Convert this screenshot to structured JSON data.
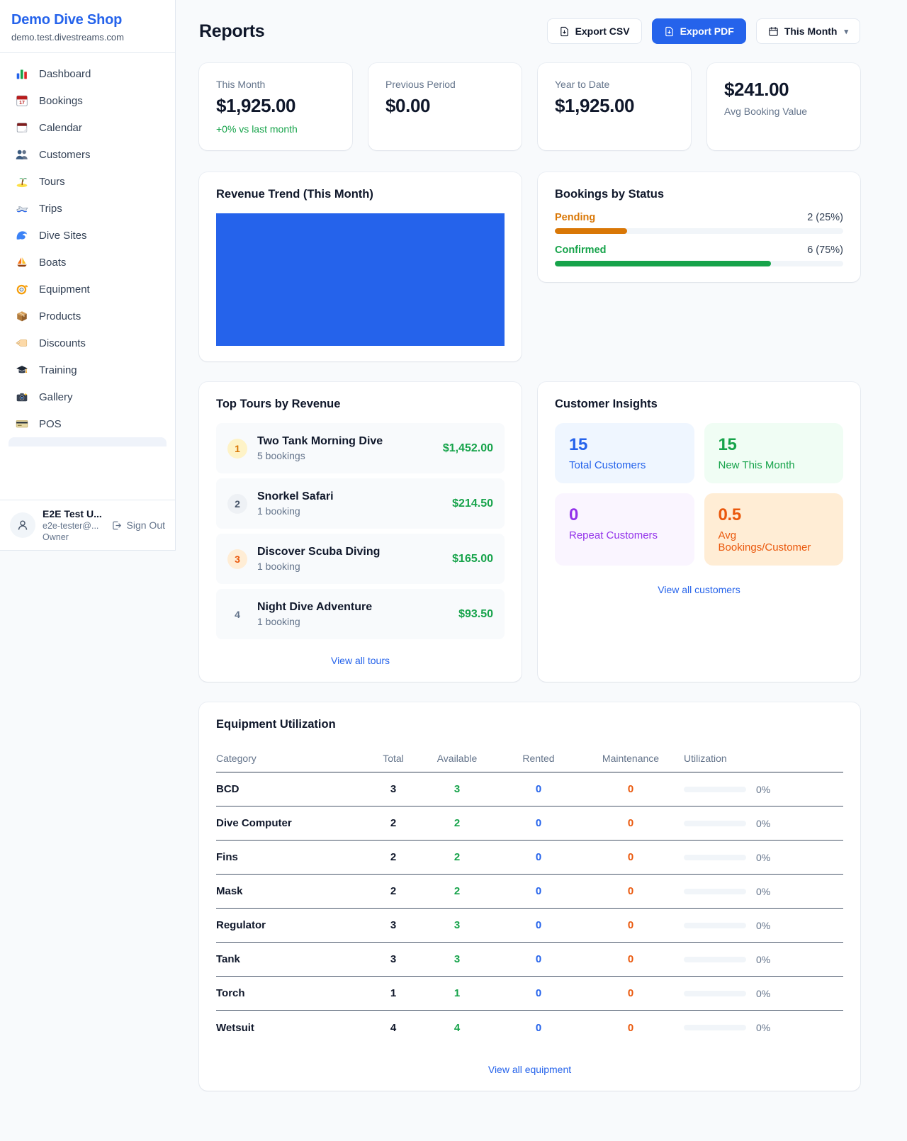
{
  "sidebar": {
    "title": "Demo Dive Shop",
    "subtitle": "demo.test.divestreams.com",
    "items": [
      {
        "label": "Dashboard",
        "icon": "bar-chart-icon"
      },
      {
        "label": "Bookings",
        "icon": "calendar-date-icon"
      },
      {
        "label": "Calendar",
        "icon": "tear-off-calendar-icon"
      },
      {
        "label": "Customers",
        "icon": "people-icon"
      },
      {
        "label": "Tours",
        "icon": "island-icon"
      },
      {
        "label": "Trips",
        "icon": "speedboat-icon"
      },
      {
        "label": "Dive Sites",
        "icon": "wave-icon"
      },
      {
        "label": "Boats",
        "icon": "sailboat-icon"
      },
      {
        "label": "Equipment",
        "icon": "dive-mask-icon"
      },
      {
        "label": "Products",
        "icon": "package-icon"
      },
      {
        "label": "Discounts",
        "icon": "tag-icon"
      },
      {
        "label": "Training",
        "icon": "graduation-cap-icon"
      },
      {
        "label": "Gallery",
        "icon": "camera-icon"
      },
      {
        "label": "POS",
        "icon": "credit-card-icon"
      }
    ],
    "user": {
      "name": "E2E Test U...",
      "email": "e2e-tester@...",
      "role": "Owner",
      "sign_out_label": "Sign Out"
    }
  },
  "header": {
    "title": "Reports",
    "export_csv_label": "Export CSV",
    "export_pdf_label": "Export PDF",
    "period_label": "This Month"
  },
  "stats": [
    {
      "label": "This Month",
      "value": "$1,925.00",
      "delta": "+0% vs last month"
    },
    {
      "label": "Previous Period",
      "value": "$0.00"
    },
    {
      "label": "Year to Date",
      "value": "$1,925.00"
    },
    {
      "label": "Avg Booking Value",
      "value": "$241.00"
    }
  ],
  "revenue_trend": {
    "title": "Revenue Trend (This Month)",
    "bar_color": "#2563eb",
    "chart_data": {
      "type": "bar",
      "series": [
        {
          "name": "Revenue",
          "values": [
            1925
          ]
        }
      ],
      "note": "single bar filling entire plot area, no axes or labels visible"
    }
  },
  "bookings_by_status": {
    "title": "Bookings by Status",
    "rows": [
      {
        "label": "Pending",
        "count_text": "2 (25%)",
        "percent": 25
      },
      {
        "label": "Confirmed",
        "count_text": "6 (75%)",
        "percent": 75
      }
    ]
  },
  "top_tours": {
    "title": "Top Tours by Revenue",
    "rows": [
      {
        "rank": "1",
        "name": "Two Tank Morning Dive",
        "bookings": "5 bookings",
        "amount": "$1,452.00"
      },
      {
        "rank": "2",
        "name": "Snorkel Safari",
        "bookings": "1 booking",
        "amount": "$214.50"
      },
      {
        "rank": "3",
        "name": "Discover Scuba Diving",
        "bookings": "1 booking",
        "amount": "$165.00"
      },
      {
        "rank": "4",
        "name": "Night Dive Adventure",
        "bookings": "1 booking",
        "amount": "$93.50"
      }
    ],
    "view_all_label": "View all tours"
  },
  "customer_insights": {
    "title": "Customer Insights",
    "tiles": [
      {
        "value": "15",
        "label": "Total Customers"
      },
      {
        "value": "15",
        "label": "New This Month"
      },
      {
        "value": "0",
        "label": "Repeat Customers"
      },
      {
        "value": "0.5",
        "label": "Avg Bookings/Customer"
      }
    ],
    "view_all_label": "View all customers"
  },
  "equipment": {
    "title": "Equipment Utilization",
    "headers": [
      "Category",
      "Total",
      "Available",
      "Rented",
      "Maintenance",
      "Utilization"
    ],
    "rows": [
      {
        "category": "BCD",
        "total": "3",
        "available": "3",
        "rented": "0",
        "maintenance": "0",
        "utilization_text": "0%",
        "utilization_percent": 0
      },
      {
        "category": "Dive Computer",
        "total": "2",
        "available": "2",
        "rented": "0",
        "maintenance": "0",
        "utilization_text": "0%",
        "utilization_percent": 0
      },
      {
        "category": "Fins",
        "total": "2",
        "available": "2",
        "rented": "0",
        "maintenance": "0",
        "utilization_text": "0%",
        "utilization_percent": 0
      },
      {
        "category": "Mask",
        "total": "2",
        "available": "2",
        "rented": "0",
        "maintenance": "0",
        "utilization_text": "0%",
        "utilization_percent": 0
      },
      {
        "category": "Regulator",
        "total": "3",
        "available": "3",
        "rented": "0",
        "maintenance": "0",
        "utilization_text": "0%",
        "utilization_percent": 0
      },
      {
        "category": "Tank",
        "total": "3",
        "available": "3",
        "rented": "0",
        "maintenance": "0",
        "utilization_text": "0%",
        "utilization_percent": 0
      },
      {
        "category": "Torch",
        "total": "1",
        "available": "1",
        "rented": "0",
        "maintenance": "0",
        "utilization_text": "0%",
        "utilization_percent": 0
      },
      {
        "category": "Wetsuit",
        "total": "4",
        "available": "4",
        "rented": "0",
        "maintenance": "0",
        "utilization_text": "0%",
        "utilization_percent": 0
      }
    ],
    "view_all_label": "View all equipment"
  },
  "colors": {
    "brand_blue": "#2563eb",
    "green": "#16a34a",
    "orange_pending": "#d97706",
    "orange_deep": "#ea580c",
    "purple": "#9333ea",
    "page_bg": "#f8fafc"
  }
}
